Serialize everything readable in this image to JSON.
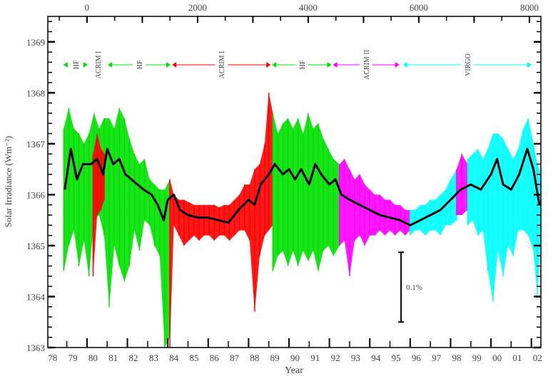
{
  "chart_data": {
    "type": "line",
    "title": "",
    "xlabel": "Year",
    "ylabel": "Solar Irradiance (Wm⁻²)",
    "xlim": [
      1978.06,
      2002.47
    ],
    "ylim": [
      1363,
      1369.5
    ],
    "y_ticks": [
      1363,
      1364,
      1365,
      1366,
      1367,
      1368,
      1369
    ],
    "x_tick_labels": [
      "78",
      "79",
      "80",
      "81",
      "82",
      "83",
      "84",
      "85",
      "86",
      "87",
      "88",
      "89",
      "90",
      "91",
      "92",
      "93",
      "94",
      "95",
      "96",
      "97",
      "98",
      "99",
      "00",
      "01",
      "02"
    ],
    "top_axis": {
      "unit": "days",
      "zero_year": 1980.0,
      "ticks": [
        0,
        2000,
        4000,
        6000,
        8000
      ]
    },
    "grid": false,
    "colors": {
      "HF": "#00e000",
      "ACRIM I": "#ff0000",
      "ACRIM II": "#ff00ff",
      "VIRGO": "#00ffff",
      "mean": "#000000"
    },
    "instrument_periods": [
      {
        "label": "HF",
        "start_day": -440,
        "end_day": 26,
        "color": "#00e000"
      },
      {
        "label": "ACRIM I",
        "start_day": 26,
        "end_day": 362,
        "color": "#00e000"
      },
      {
        "label": "HF",
        "start_day": 362,
        "end_day": 1525,
        "color": "#00e000"
      },
      {
        "label": "ACRIM I",
        "start_day": 1525,
        "end_day": 3334,
        "color": "#ff0000"
      },
      {
        "label": "HF",
        "start_day": 3334,
        "end_day": 4433,
        "color": "#00e000"
      },
      {
        "label": "ACRIM II",
        "start_day": 4433,
        "end_day": 5661,
        "color": "#ff00ff"
      },
      {
        "label": "VIRGO",
        "start_day": 5700,
        "end_day": 8052,
        "color": "#00ffff"
      }
    ],
    "daily_envelopes": [
      {
        "instrument": "HF",
        "color": "#00e000",
        "samples": [
          [
            1978.85,
            1364.5,
            1367.3
          ],
          [
            1979.1,
            1365.0,
            1367.7
          ],
          [
            1979.35,
            1365.3,
            1367.3
          ],
          [
            1979.6,
            1364.6,
            1367.2
          ],
          [
            1979.85,
            1365.1,
            1367.0
          ],
          [
            1980.1,
            1364.4,
            1367.2
          ],
          [
            1980.35,
            1365.5,
            1367.6
          ],
          [
            1980.6,
            1365.6,
            1367.3
          ],
          [
            1980.85,
            1365.2,
            1367.5
          ],
          [
            1981.1,
            1363.8,
            1367.5
          ],
          [
            1981.35,
            1365.0,
            1367.3
          ],
          [
            1981.6,
            1364.6,
            1367.7
          ],
          [
            1981.85,
            1364.3,
            1367.5
          ],
          [
            1982.1,
            1364.6,
            1367.1
          ],
          [
            1982.35,
            1365.3,
            1366.8
          ],
          [
            1982.6,
            1364.9,
            1366.6
          ],
          [
            1982.85,
            1365.5,
            1366.7
          ],
          [
            1983.1,
            1365.4,
            1366.3
          ],
          [
            1983.35,
            1365.0,
            1366.2
          ],
          [
            1983.6,
            1364.8,
            1366.1
          ],
          [
            1983.85,
            1363.0,
            1366.1
          ],
          [
            1984.1,
            1363.2,
            1366.3
          ]
        ]
      },
      {
        "instrument": "ACRIM I",
        "color": "#ff0000",
        "samples": [
          [
            1980.3,
            1364.4,
            1366.8
          ],
          [
            1980.5,
            1365.6,
            1367.2
          ],
          [
            1980.7,
            1365.7,
            1366.9
          ],
          [
            1980.85,
            1365.9,
            1366.8
          ]
        ]
      },
      {
        "instrument": "ACRIM I",
        "color": "#ff0000",
        "samples": [
          [
            1984.1,
            1363.0,
            1366.3
          ],
          [
            1984.3,
            1365.4,
            1366.0
          ],
          [
            1984.55,
            1365.2,
            1365.9
          ],
          [
            1984.8,
            1365.0,
            1365.9
          ],
          [
            1985.05,
            1365.1,
            1365.85
          ],
          [
            1985.3,
            1365.2,
            1365.8
          ],
          [
            1985.55,
            1365.1,
            1365.8
          ],
          [
            1985.8,
            1365.2,
            1365.8
          ],
          [
            1986.05,
            1365.2,
            1365.8
          ],
          [
            1986.3,
            1365.1,
            1365.8
          ],
          [
            1986.55,
            1365.2,
            1365.75
          ],
          [
            1986.8,
            1365.2,
            1365.8
          ],
          [
            1987.05,
            1365.1,
            1365.8
          ],
          [
            1987.3,
            1365.2,
            1365.9
          ],
          [
            1987.55,
            1365.3,
            1366.0
          ],
          [
            1987.8,
            1365.3,
            1366.2
          ],
          [
            1988.05,
            1365.1,
            1366.2
          ],
          [
            1988.3,
            1363.7,
            1366.5
          ],
          [
            1988.55,
            1364.8,
            1366.6
          ],
          [
            1988.8,
            1365.2,
            1367.0
          ],
          [
            1989.0,
            1365.3,
            1368.0
          ],
          [
            1989.2,
            1365.4,
            1367.6
          ]
        ]
      },
      {
        "instrument": "HF",
        "color": "#00e000",
        "samples": [
          [
            1989.2,
            1364.5,
            1367.6
          ],
          [
            1989.45,
            1364.8,
            1367.2
          ],
          [
            1989.7,
            1364.9,
            1367.4
          ],
          [
            1989.95,
            1364.6,
            1367.5
          ],
          [
            1990.2,
            1364.9,
            1367.3
          ],
          [
            1990.45,
            1364.6,
            1367.5
          ],
          [
            1990.7,
            1364.9,
            1367.2
          ],
          [
            1990.95,
            1364.7,
            1367.6
          ],
          [
            1991.2,
            1364.9,
            1367.3
          ],
          [
            1991.45,
            1364.5,
            1367.4
          ],
          [
            1991.7,
            1364.9,
            1367.1
          ],
          [
            1991.95,
            1365.0,
            1366.9
          ],
          [
            1992.2,
            1364.8,
            1366.7
          ],
          [
            1992.5,
            1365.0,
            1366.6
          ]
        ]
      },
      {
        "instrument": "ACRIM II",
        "color": "#ff00ff",
        "samples": [
          [
            1992.5,
            1365.0,
            1366.6
          ],
          [
            1992.75,
            1365.1,
            1366.7
          ],
          [
            1993.0,
            1364.4,
            1366.5
          ],
          [
            1993.25,
            1365.1,
            1366.3
          ],
          [
            1993.5,
            1365.2,
            1366.4
          ],
          [
            1993.75,
            1365.0,
            1366.2
          ],
          [
            1994.0,
            1365.2,
            1366.1
          ],
          [
            1994.25,
            1365.2,
            1366.0
          ],
          [
            1994.5,
            1365.3,
            1366.0
          ],
          [
            1994.75,
            1365.2,
            1365.9
          ],
          [
            1995.0,
            1365.3,
            1365.9
          ],
          [
            1995.25,
            1365.2,
            1365.8
          ],
          [
            1995.5,
            1365.3,
            1365.8
          ],
          [
            1995.75,
            1365.2,
            1365.7
          ],
          [
            1996.0,
            1365.3,
            1365.7
          ]
        ]
      },
      {
        "instrument": "VIRGO",
        "color": "#00ffff",
        "samples": [
          [
            1996.0,
            1365.2,
            1365.7
          ],
          [
            1996.25,
            1365.3,
            1365.7
          ],
          [
            1996.5,
            1365.3,
            1365.8
          ],
          [
            1996.75,
            1365.2,
            1365.8
          ],
          [
            1997.0,
            1365.3,
            1365.9
          ],
          [
            1997.25,
            1365.3,
            1365.9
          ],
          [
            1997.5,
            1365.2,
            1366.0
          ],
          [
            1997.75,
            1365.4,
            1366.1
          ],
          [
            1998.0,
            1365.4,
            1366.3
          ],
          [
            1998.3,
            1365.5,
            1366.5
          ]
        ]
      },
      {
        "instrument": "ACRIM II",
        "color": "#ff00ff",
        "samples": [
          [
            1998.3,
            1365.6,
            1366.5
          ],
          [
            1998.55,
            1365.6,
            1366.8
          ],
          [
            1998.85,
            1365.7,
            1366.6
          ]
        ]
      },
      {
        "instrument": "VIRGO",
        "color": "#00ffff",
        "samples": [
          [
            1998.85,
            1365.4,
            1366.7
          ],
          [
            1999.1,
            1365.5,
            1366.8
          ],
          [
            1999.35,
            1365.2,
            1366.9
          ],
          [
            1999.6,
            1365.3,
            1366.7
          ],
          [
            1999.85,
            1364.5,
            1366.9
          ],
          [
            2000.1,
            1363.9,
            1367.2
          ],
          [
            2000.35,
            1364.9,
            1367.2
          ],
          [
            2000.6,
            1364.4,
            1367.1
          ],
          [
            2000.85,
            1365.0,
            1366.9
          ],
          [
            2001.1,
            1364.8,
            1366.7
          ],
          [
            2001.35,
            1365.3,
            1366.9
          ],
          [
            2001.6,
            1365.3,
            1367.3
          ],
          [
            2001.85,
            1365.2,
            1367.5
          ],
          [
            2002.1,
            1364.9,
            1367.0
          ],
          [
            2002.3,
            1364.0,
            1366.6
          ],
          [
            2002.47,
            1365.3,
            1366.4
          ]
        ]
      }
    ],
    "running_mean": {
      "color": "#000000",
      "points": [
        [
          1978.9,
          1366.1
        ],
        [
          1979.05,
          1366.5
        ],
        [
          1979.2,
          1366.9
        ],
        [
          1979.5,
          1366.3
        ],
        [
          1979.8,
          1366.6
        ],
        [
          1980.2,
          1366.6
        ],
        [
          1980.5,
          1366.7
        ],
        [
          1980.8,
          1366.4
        ],
        [
          1981.0,
          1366.9
        ],
        [
          1981.3,
          1366.6
        ],
        [
          1981.6,
          1366.7
        ],
        [
          1981.9,
          1366.4
        ],
        [
          1982.2,
          1366.3
        ],
        [
          1982.5,
          1366.2
        ],
        [
          1982.8,
          1366.1
        ],
        [
          1983.2,
          1366.0
        ],
        [
          1983.5,
          1365.8
        ],
        [
          1983.8,
          1365.5
        ],
        [
          1984.0,
          1365.9
        ],
        [
          1984.3,
          1366.0
        ],
        [
          1984.6,
          1365.7
        ],
        [
          1985.0,
          1365.6
        ],
        [
          1985.5,
          1365.55
        ],
        [
          1986.0,
          1365.55
        ],
        [
          1986.5,
          1365.5
        ],
        [
          1987.0,
          1365.45
        ],
        [
          1987.5,
          1365.7
        ],
        [
          1988.0,
          1365.9
        ],
        [
          1988.3,
          1365.8
        ],
        [
          1988.6,
          1366.2
        ],
        [
          1989.0,
          1366.4
        ],
        [
          1989.3,
          1366.6
        ],
        [
          1989.7,
          1366.4
        ],
        [
          1990.0,
          1366.5
        ],
        [
          1990.3,
          1366.3
        ],
        [
          1990.6,
          1366.5
        ],
        [
          1991.0,
          1366.2
        ],
        [
          1991.3,
          1366.6
        ],
        [
          1991.6,
          1366.4
        ],
        [
          1992.0,
          1366.2
        ],
        [
          1992.3,
          1366.3
        ],
        [
          1992.6,
          1366.0
        ],
        [
          1993.0,
          1365.9
        ],
        [
          1993.5,
          1365.8
        ],
        [
          1994.0,
          1365.7
        ],
        [
          1994.5,
          1365.6
        ],
        [
          1995.0,
          1365.55
        ],
        [
          1995.5,
          1365.5
        ],
        [
          1996.0,
          1365.4
        ],
        [
          1996.5,
          1365.5
        ],
        [
          1997.0,
          1365.6
        ],
        [
          1997.5,
          1365.7
        ],
        [
          1998.0,
          1365.9
        ],
        [
          1998.5,
          1366.1
        ],
        [
          1999.0,
          1366.2
        ],
        [
          1999.5,
          1366.1
        ],
        [
          2000.0,
          1366.4
        ],
        [
          2000.3,
          1366.7
        ],
        [
          2000.6,
          1366.2
        ],
        [
          2001.0,
          1366.1
        ],
        [
          2001.4,
          1366.4
        ],
        [
          2001.8,
          1366.9
        ],
        [
          2002.1,
          1366.5
        ],
        [
          2002.4,
          1365.8
        ]
      ]
    },
    "scale_bar": {
      "label": "0.1%",
      "year": 1995.55,
      "from": 1363.5,
      "to": 1364.87
    }
  }
}
